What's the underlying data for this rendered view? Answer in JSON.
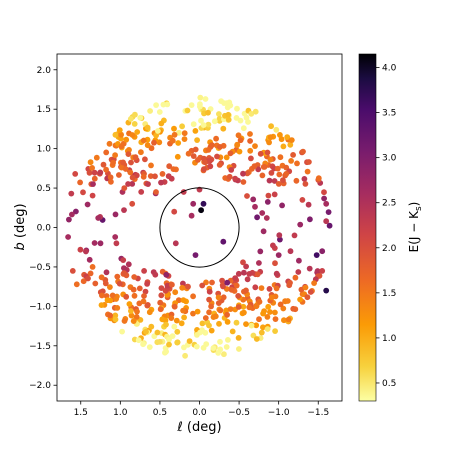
{
  "chart_data": {
    "type": "scatter",
    "title": "",
    "xlabel": "ℓ (deg)",
    "ylabel_italic": "b",
    "ylabel_suffix": " (deg)",
    "xlim": [
      1.8,
      -1.8
    ],
    "ylim": [
      -2.2,
      2.2
    ],
    "xticks": [
      1.5,
      1.0,
      0.5,
      0.0,
      -0.5,
      -1.0,
      -1.5
    ],
    "xtick_labels": [
      "1.5",
      "1.0",
      "0.5",
      "0.0",
      "−0.5",
      "−1.0",
      "−1.5"
    ],
    "yticks": [
      2.0,
      1.5,
      1.0,
      0.5,
      0.0,
      -0.5,
      -1.0,
      -1.5,
      -2.0
    ],
    "ytick_labels": [
      "2.0",
      "1.5",
      "1.0",
      "0.5",
      "0.0",
      "−0.5",
      "−1.0",
      "−1.5",
      "−2.0"
    ],
    "grid": false,
    "colormap": "inferno_r",
    "colorbar": {
      "label_main": "E(J − K",
      "label_sub": "s",
      "label_end": ")",
      "vmin": 0.3,
      "vmax": 4.15,
      "ticks": [
        0.5,
        1.0,
        1.5,
        2.0,
        2.5,
        3.0,
        3.5,
        4.0
      ],
      "tick_labels": [
        "0.5",
        "1.0",
        "1.5",
        "2.0",
        "2.5",
        "3.0",
        "3.5",
        "4.0"
      ]
    },
    "circle": {
      "center": [
        0.0,
        0.0
      ],
      "radius": 0.5
    },
    "annulus": {
      "inner_radius": 0.7,
      "outer_radius": 1.65,
      "center": [
        0.0,
        0.0
      ]
    },
    "points": [
      [
        1.57,
        0.68,
        2.1
      ],
      [
        1.62,
        0.43,
        2.3
      ],
      [
        1.65,
        0.1,
        2.8
      ],
      [
        1.66,
        -0.12,
        2.6
      ],
      [
        1.6,
        -0.55,
        2.0
      ],
      [
        1.55,
        -0.72,
        1.6
      ],
      [
        -1.6,
        0.3,
        2.6
      ],
      [
        -1.55,
        -0.3,
        2.9
      ],
      [
        -1.6,
        0.08,
        2.4
      ],
      [
        -1.48,
        -0.35,
        3.6
      ],
      [
        -1.6,
        -0.8,
        3.8
      ],
      [
        -1.55,
        -0.55,
        2.2
      ],
      [
        0.08,
        0.3,
        2.7
      ],
      [
        0.1,
        0.15,
        2.6
      ],
      [
        -0.05,
        0.3,
        3.7
      ],
      [
        -0.02,
        0.22,
        4.1
      ],
      [
        0.32,
        0.2,
        2.1
      ],
      [
        0.2,
        0.45,
        2.3
      ],
      [
        -0.3,
        -0.18,
        3.3
      ],
      [
        0.05,
        -0.35,
        3.1
      ],
      [
        0.3,
        -0.2,
        2.4
      ],
      [
        0.55,
        0.45,
        1.8
      ],
      [
        -0.45,
        0.62,
        2.2
      ],
      [
        0.0,
        0.48,
        2.3
      ],
      [
        1.25,
        -0.2,
        2.7
      ],
      [
        1.28,
        0.12,
        2.6
      ],
      [
        0.85,
        0.3,
        2.0
      ],
      [
        -0.85,
        0.12,
        2.5
      ],
      [
        -1.2,
        -0.1,
        2.3
      ],
      [
        1.05,
        -0.2,
        2.3
      ],
      [
        -1.15,
        -0.3,
        2.4
      ],
      [
        0.7,
        -0.55,
        2.2
      ],
      [
        -0.75,
        -0.45,
        2.5
      ],
      [
        -1.0,
        -0.35,
        2.7
      ],
      [
        0.95,
        0.5,
        1.9
      ],
      [
        -0.95,
        0.42,
        2.2
      ],
      [
        0.65,
        0.55,
        2.3
      ],
      [
        -0.6,
        0.4,
        2.0
      ],
      [
        1.35,
        -0.5,
        1.6
      ],
      [
        -1.3,
        0.35,
        2.1
      ],
      [
        0.42,
        -0.6,
        2.8
      ],
      [
        -0.35,
        -0.7,
        3.0
      ]
    ]
  }
}
